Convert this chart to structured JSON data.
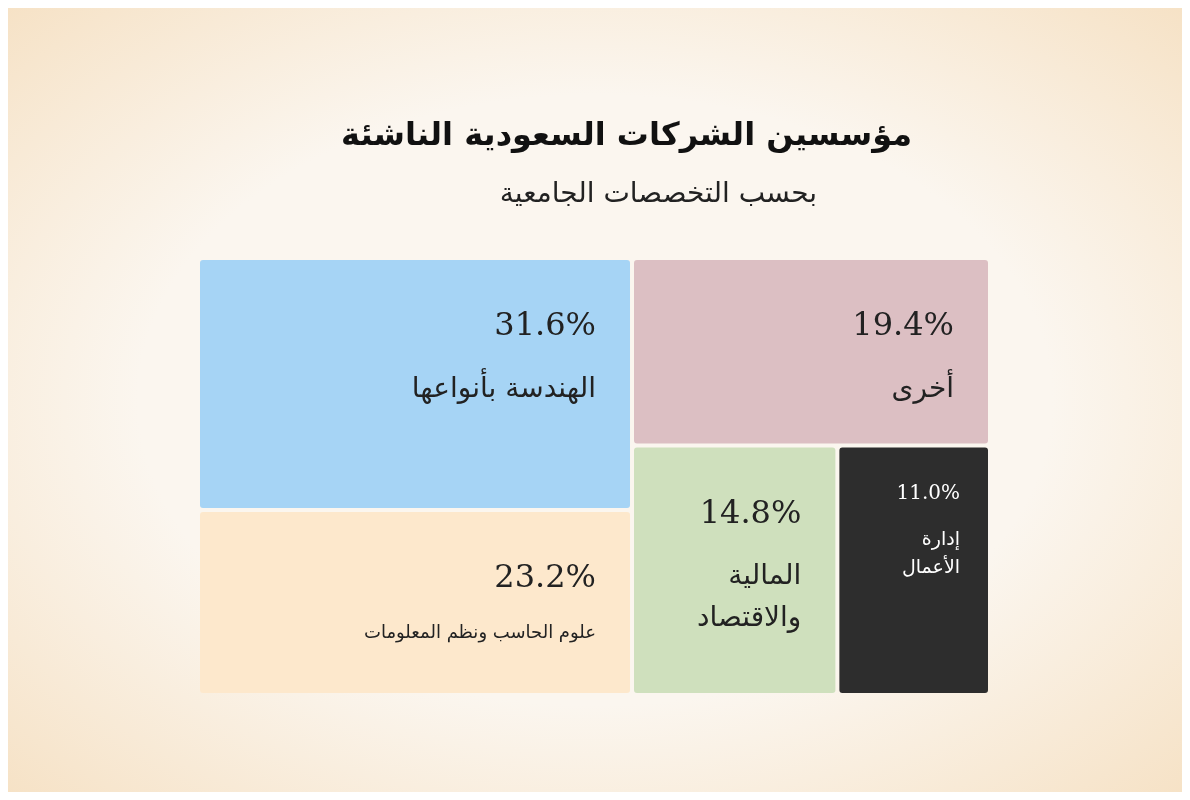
{
  "chart_data": {
    "type": "other",
    "title": "مؤسسين الشركات السعودية الناشئة",
    "subtitle": "بحسب التخصصات الجامعية",
    "categories": [
      "الهندسة بأنواعها",
      "علوم الحاسب ونظم المعلومات",
      "أخرى",
      "المالية\nوالاقتصاد",
      "إدارة\nالأعمال"
    ],
    "values": [
      31.6,
      23.2,
      19.4,
      14.8,
      11.0
    ],
    "value_labels": [
      "31.6%",
      "23.2%",
      "19.4%",
      "14.8%",
      "11.0%"
    ],
    "colors": [
      "#a6d4f5",
      "#fde8cc",
      "#dcbfc3",
      "#cfe0bd",
      "#2d2d2d"
    ]
  }
}
